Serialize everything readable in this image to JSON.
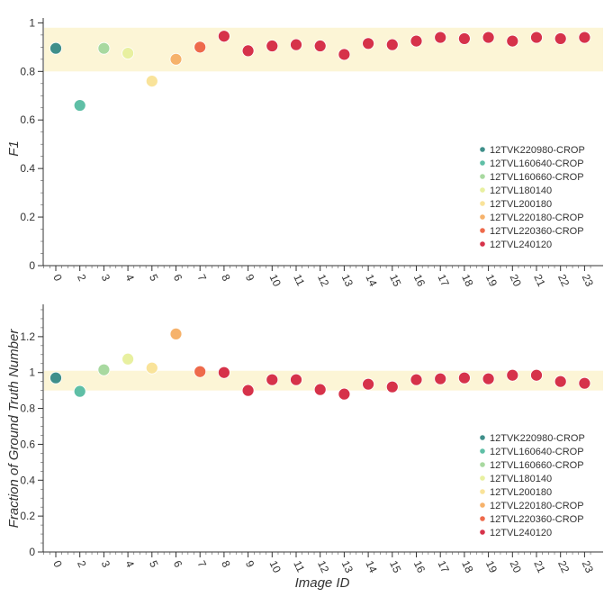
{
  "legend_entries": [
    {
      "label": "12TVK220980-CROP",
      "color": "#3f8f8a"
    },
    {
      "label": "12TVL160640-CROP",
      "color": "#5fbfa6"
    },
    {
      "label": "12TVL160660-CROP",
      "color": "#a8d9a0"
    },
    {
      "label": "12TVL180140",
      "color": "#e8f0a0"
    },
    {
      "label": "12TVL200180",
      "color": "#f9e39a"
    },
    {
      "label": "12TVL220180-CROP",
      "color": "#f6b26b"
    },
    {
      "label": "12TVL220360-CROP",
      "color": "#ee6a4b"
    },
    {
      "label": "12TVL240120",
      "color": "#d6324a"
    }
  ],
  "chart_data": [
    {
      "type": "scatter",
      "title": "",
      "xlabel": "",
      "ylabel": "F1",
      "ylim": [
        0,
        1.02
      ],
      "yticks": [
        0,
        0.2,
        0.4,
        0.6,
        0.8,
        1
      ],
      "yticklabels": [
        "0",
        "0.2",
        "0.4",
        "0.6",
        "0.8",
        "1"
      ],
      "band": [
        0.8,
        0.98
      ],
      "band_color": "#fbf2c8",
      "legend_position": "lower-right",
      "grid": false,
      "categories": [
        "0",
        "2",
        "3",
        "4",
        "5",
        "6",
        "7",
        "8",
        "9",
        "10",
        "11",
        "12",
        "13",
        "14",
        "15",
        "16",
        "17",
        "18",
        "19",
        "20",
        "21",
        "22",
        "23"
      ],
      "series_index": [
        0,
        1,
        2,
        3,
        4,
        5,
        6,
        7,
        7,
        7,
        7,
        7,
        7,
        7,
        7,
        7,
        7,
        7,
        7,
        7,
        7,
        7,
        7
      ],
      "values": [
        0.895,
        0.66,
        0.895,
        0.875,
        0.76,
        0.85,
        0.9,
        0.945,
        0.885,
        0.905,
        0.91,
        0.905,
        0.87,
        0.915,
        0.91,
        0.925,
        0.94,
        0.935,
        0.94,
        0.925,
        0.94,
        0.935,
        0.94
      ]
    },
    {
      "type": "scatter",
      "title": "",
      "xlabel": "Image ID",
      "ylabel": "Fraction of Ground Truth Number",
      "ylim": [
        0,
        1.38
      ],
      "yticks": [
        0,
        0.2,
        0.4,
        0.6,
        0.8,
        1,
        1.2
      ],
      "yticklabels": [
        "0",
        "0.2",
        "0.4",
        "0.6",
        "0.8",
        "1",
        "1.2"
      ],
      "band": [
        0.9,
        1.01
      ],
      "band_color": "#fbf2c8",
      "legend_position": "lower-right",
      "grid": false,
      "categories": [
        "0",
        "2",
        "3",
        "4",
        "5",
        "6",
        "7",
        "8",
        "9",
        "10",
        "11",
        "12",
        "13",
        "14",
        "15",
        "16",
        "17",
        "18",
        "19",
        "20",
        "21",
        "22",
        "23"
      ],
      "series_index": [
        0,
        1,
        2,
        3,
        4,
        5,
        6,
        7,
        7,
        7,
        7,
        7,
        7,
        7,
        7,
        7,
        7,
        7,
        7,
        7,
        7,
        7,
        7
      ],
      "values": [
        0.97,
        0.895,
        1.015,
        1.075,
        1.025,
        1.215,
        1.005,
        1.0,
        0.9,
        0.96,
        0.96,
        0.905,
        0.88,
        0.935,
        0.92,
        0.96,
        0.965,
        0.97,
        0.965,
        0.985,
        0.985,
        0.95,
        0.94
      ]
    }
  ]
}
